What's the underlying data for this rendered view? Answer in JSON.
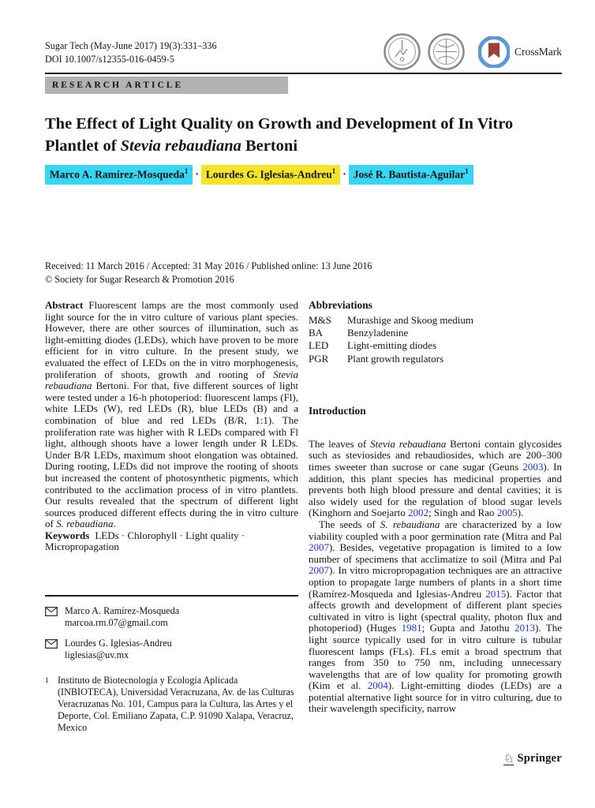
{
  "header": {
    "journal_line": "Sugar Tech (May-June 2017) 19(3):331–336",
    "doi_line": "DOI 10.1007/s12355-016-0459-5",
    "crossmark_label": "CrossMark",
    "article_type": "RESEARCH ARTICLE"
  },
  "colors": {
    "highlight_cyan": "#38d6f3",
    "highlight_yellow": "#f3e42c",
    "citation_blue": "#2433cc",
    "article_bar_gray": "#b2b2b2",
    "crossmark_ring_blue": "#5b9bd5",
    "crossmark_bookmark_red": "#9c4038"
  },
  "icons": {
    "seals": "society-seal-icon",
    "crossmark": "crossmark-icon",
    "correspondence": "envelope-icon",
    "publisher": "springer-knight-icon"
  },
  "title": {
    "rich": [
      {
        "t": "The Effect of Light Quality on Growth and Development of In Vitro Plantlet of "
      },
      {
        "t": "Stevia rebaudiana",
        "s": "i"
      },
      {
        "t": " Bertoni"
      }
    ]
  },
  "author_separator": "·",
  "authors": [
    {
      "name": "Marco A. Ramírez-Mosqueda",
      "sup": "1"
    },
    {
      "name": "Lourdes G. Iglesias-Andreu",
      "sup": "1"
    },
    {
      "name": "José R. Bautista-Aguilar",
      "sup": "1"
    }
  ],
  "dates_line": "Received: 11 March 2016 / Accepted: 31 May 2016 / Published online: 13 June 2016",
  "copyright_line": "© Society for Sugar Research & Promotion 2016",
  "abstract": {
    "label": "Abstract",
    "rich": [
      {
        "t": "Fluorescent lamps are the most commonly used light source for the in vitro culture of various plant species. However, there are other sources of illumination, such as light-emitting diodes (LEDs), which have proven to be more efficient for in vitro culture. In the present study, we evaluated the effect of LEDs on the in vitro morphogenesis, proliferation of shoots, growth and rooting of "
      },
      {
        "t": "Stevia rebaudiana",
        "s": "i"
      },
      {
        "t": " Bertoni. For that, five different sources of light were tested under a 16-h photoperiod: fluorescent lamps (Fl), white LEDs (W), red LEDs (R), blue LEDs (B) and a combination of blue and red LEDs (B/R, 1:1). The proliferation rate was higher with R LEDs compared with Fl light, although shoots have a lower length under R LEDs. Under B/R LEDs, maximum shoot elongation was obtained. During rooting, LEDs did not improve the rooting of shoots but increased the content of photosynthetic pigments, which contributed to the acclimation process of in vitro plantlets. Our results revealed that the spectrum of different light sources produced different effects during the in vitro culture of "
      },
      {
        "t": "S. rebaudiana",
        "s": "i"
      },
      {
        "t": "."
      }
    ]
  },
  "keywords": {
    "label": "Keywords",
    "rich": [
      {
        "t": "LEDs · Chlorophyll · Light quality ·\nMicropropagation"
      }
    ]
  },
  "abbreviations": {
    "heading": "Abbreviations",
    "items": [
      {
        "abbr": "M&S",
        "def": "Murashige and Skoog medium"
      },
      {
        "abbr": "BA",
        "def": "Benzyladenine"
      },
      {
        "abbr": "LED",
        "def": "Light-emitting diodes"
      },
      {
        "abbr": "PGR",
        "def": "Plant growth regulators"
      }
    ]
  },
  "introduction": {
    "heading": "Introduction",
    "paragraphs": [
      {
        "rich": [
          {
            "t": "The leaves of "
          },
          {
            "t": "Stevia rebaudiana",
            "s": "i"
          },
          {
            "t": " Bertoni contain glycosides such as steviosides and rebaudiosides, which are 200–300 times sweeter than sucrose or cane sugar (Geuns "
          },
          {
            "t": "2003",
            "s": "l"
          },
          {
            "t": "). In addition, this plant species has medicinal properties and prevents both high blood pressure and dental cavities; it is also widely used for the regulation of blood sugar levels (Kinghorn and Soejarto "
          },
          {
            "t": "2002",
            "s": "l"
          },
          {
            "t": "; Singh and Rao "
          },
          {
            "t": "2005",
            "s": "l"
          },
          {
            "t": ")."
          }
        ]
      },
      {
        "rich": [
          {
            "t": "The seeds of "
          },
          {
            "t": "S. rebaudiana",
            "s": "i"
          },
          {
            "t": " are characterized by a low viability coupled with a poor germination rate (Mitra and Pal "
          },
          {
            "t": "2007",
            "s": "l"
          },
          {
            "t": "). Besides, vegetative propagation is limited to a low number of specimens that acclimatize to soil (Mitra and Pal "
          },
          {
            "t": "2007",
            "s": "l"
          },
          {
            "t": "). In vitro micropropagation techniques are an attractive option to propagate large numbers of plants in a short time (Ramírez-Mosqueda and Iglesias-Andreu "
          },
          {
            "t": "2015",
            "s": "l"
          },
          {
            "t": "). Factor that affects growth and development of different plant species cultivated in vitro is light (spectral quality, photon flux and photoperiod) (Huges "
          },
          {
            "t": "1981",
            "s": "l"
          },
          {
            "t": "; Gupta and Jatothu "
          },
          {
            "t": "2013",
            "s": "l"
          },
          {
            "t": "). The light source typically used for in vitro culture is tubular fluorescent lamps (FLs). FLs emit a broad spectrum that ranges from 350 to 750 nm, including unnecessary wavelengths that are of low quality for promoting growth (Kim et al. "
          },
          {
            "t": "2004",
            "s": "l"
          },
          {
            "t": "). Light-emitting diodes (LEDs) are a potential alternative light source for in vitro culturing, due to their wavelength specificity, narrow"
          }
        ]
      }
    ]
  },
  "footnotes": {
    "contacts": [
      {
        "name": "Marco A. Ramírez-Mosqueda",
        "email": "marcoa.rm.07@gmail.com"
      },
      {
        "name": "Lourdes G. Iglesias-Andreu",
        "email": "liglesias@uv.mx"
      }
    ],
    "affiliation": {
      "sup": "1",
      "text": "Instituto de Biotecnología y Ecología Aplicada (INBIOTECA), Universidad Veracruzana, Av. de las Culturas Veracruzanas No. 101, Campus para la Cultura, las Artes y el Deporte, Col. Emiliano Zapata, C.P. 91090 Xalapa, Veracruz, Mexico"
    }
  },
  "footer": {
    "publisher": "Springer",
    "knight_glyph": "♘"
  }
}
